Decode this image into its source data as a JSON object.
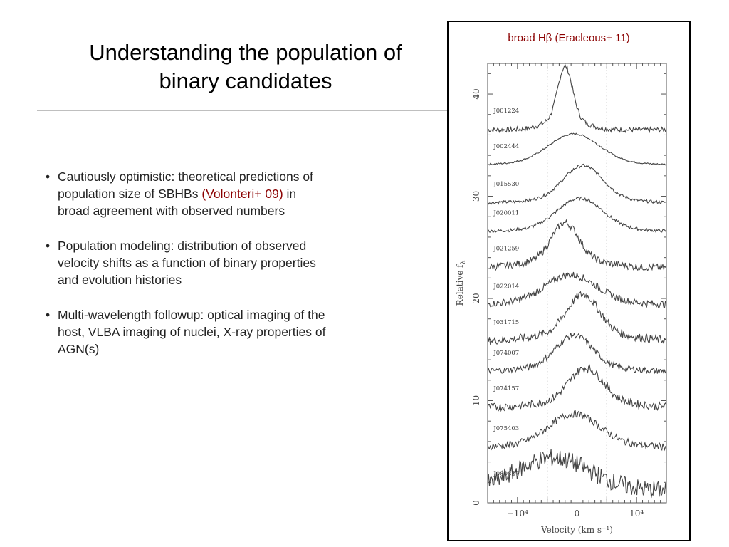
{
  "slide": {
    "title_line1": "Understanding the population of",
    "title_line2": "binary candidates"
  },
  "bullets": [
    {
      "marker": "•",
      "lines": [
        {
          "pre": "Cautiously optimistic: theoretical predictions of",
          "cite": "",
          "post": ""
        },
        {
          "pre": "population size of SBHBs ",
          "cite": "(Volonteri+ 09)",
          "post": " in"
        },
        {
          "pre": "broad agreement with observed numbers",
          "cite": "",
          "post": ""
        }
      ]
    },
    {
      "marker": "•",
      "lines": [
        {
          "pre": "Population modeling: distribution of observed",
          "cite": "",
          "post": ""
        },
        {
          "pre": "velocity shifts as a function of binary properties",
          "cite": "",
          "post": ""
        },
        {
          "pre": "and evolution histories",
          "cite": "",
          "post": ""
        }
      ]
    },
    {
      "marker": "•",
      "lines": [
        {
          "pre": "Multi-wavelength followup: optical imaging of the",
          "cite": "",
          "post": ""
        },
        {
          "pre": "host, VLBA imaging of nuclei, X-ray properties of",
          "cite": "",
          "post": ""
        },
        {
          "pre": "AGN(s)",
          "cite": "",
          "post": ""
        }
      ]
    }
  ],
  "figure": {
    "caption": "broad Hβ (Eracleous+ 11)",
    "colors": {
      "caption": "#8b0000",
      "spectra": "#444444",
      "frame": "#000000"
    }
  },
  "chart_data": {
    "type": "line",
    "xlabel": "Velocity (km s⁻¹)",
    "ylabel": "Relative f",
    "ylabel_sub": "λ",
    "xlim": [
      -15000,
      15000
    ],
    "ylim": [
      0,
      43
    ],
    "xtick_labels": [
      {
        "value": -10000,
        "label": "−10⁴"
      },
      {
        "value": 0,
        "label": "0"
      },
      {
        "value": 10000,
        "label": "10⁴"
      }
    ],
    "ytick_labels": [
      {
        "value": 0,
        "label": "0"
      },
      {
        "value": 10,
        "label": "10"
      },
      {
        "value": 20,
        "label": "20"
      },
      {
        "value": 30,
        "label": "30"
      },
      {
        "value": 40,
        "label": "40"
      }
    ],
    "dashed_vline": 0,
    "dotted_vlines": [
      -5000,
      5000
    ],
    "series": [
      {
        "name": "J001224",
        "offset": 36.5,
        "peak": 5.0,
        "center": -2000,
        "width": 1200,
        "broad": 1.2,
        "noise": 0.25
      },
      {
        "name": "J002444",
        "offset": 33.0,
        "peak": 2.8,
        "center": -500,
        "width": 4200,
        "broad": 0.3,
        "noise": 0.08
      },
      {
        "name": "J015530",
        "offset": 29.3,
        "peak": 3.3,
        "center": 1000,
        "width": 3300,
        "broad": 0.4,
        "noise": 0.15
      },
      {
        "name": "J020011",
        "offset": 26.5,
        "peak": 3.0,
        "center": 500,
        "width": 3800,
        "broad": 0.3,
        "noise": 0.15
      },
      {
        "name": "J021259",
        "offset": 23.0,
        "peak": 3.4,
        "center": -2000,
        "width": 2200,
        "broad": 1.0,
        "noise": 0.35
      },
      {
        "name": "J022014",
        "offset": 19.3,
        "peak": 2.6,
        "center": -1000,
        "width": 4200,
        "broad": 0.4,
        "noise": 0.35
      },
      {
        "name": "J031715",
        "offset": 15.8,
        "peak": 3.6,
        "center": 1000,
        "width": 2600,
        "broad": 1.0,
        "noise": 0.4
      },
      {
        "name": "J074007",
        "offset": 12.8,
        "peak": 3.0,
        "center": -500,
        "width": 3000,
        "broad": 0.6,
        "noise": 0.3
      },
      {
        "name": "J074157",
        "offset": 9.3,
        "peak": 3.2,
        "center": 1500,
        "width": 2800,
        "broad": 0.7,
        "noise": 0.4
      },
      {
        "name": "J075403",
        "offset": 5.4,
        "peak": 3.0,
        "center": -500,
        "width": 4200,
        "broad": 0.3,
        "noise": 0.35
      },
      {
        "name": "J080827",
        "offset": 1.0,
        "peak": 3.0,
        "center": -4000,
        "width": 6000,
        "broad": 0.4,
        "noise": 0.9
      }
    ]
  }
}
